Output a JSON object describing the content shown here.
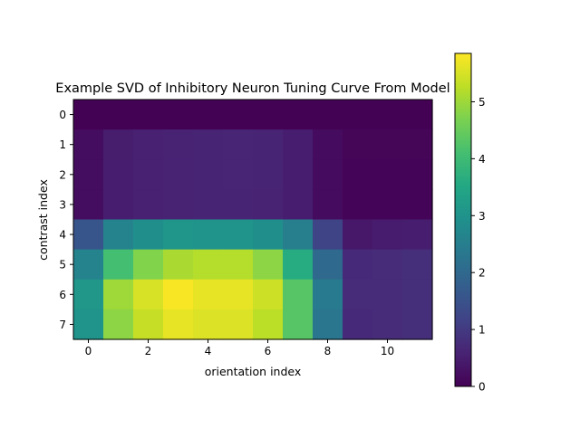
{
  "chart_data": {
    "type": "heatmap",
    "title": "Example SVD of Inhibitory Neuron Tuning Curve From Model",
    "xlabel": "orientation index",
    "ylabel": "contrast index",
    "x_ticks": [
      0,
      2,
      4,
      6,
      8,
      10
    ],
    "y_ticks": [
      0,
      1,
      2,
      3,
      4,
      5,
      6,
      7
    ],
    "colormap": "viridis",
    "colorbar": {
      "vmin": 0,
      "vmax": 5.85,
      "ticks": [
        0,
        1,
        2,
        3,
        4,
        5
      ]
    },
    "grid": false,
    "values": [
      [
        0.02,
        0.02,
        0.02,
        0.02,
        0.02,
        0.02,
        0.02,
        0.02,
        0.01,
        0.01,
        0.01,
        0.01
      ],
      [
        0.2,
        0.48,
        0.55,
        0.58,
        0.6,
        0.62,
        0.6,
        0.5,
        0.18,
        0.08,
        0.08,
        0.08
      ],
      [
        0.2,
        0.5,
        0.55,
        0.58,
        0.6,
        0.62,
        0.6,
        0.5,
        0.18,
        0.05,
        0.05,
        0.05
      ],
      [
        0.2,
        0.5,
        0.55,
        0.58,
        0.6,
        0.6,
        0.58,
        0.5,
        0.18,
        0.05,
        0.05,
        0.05
      ],
      [
        1.55,
        2.6,
        2.9,
        3.05,
        3.0,
        3.0,
        2.9,
        2.5,
        1.2,
        0.4,
        0.45,
        0.5
      ],
      [
        2.6,
        4.1,
        4.75,
        5.1,
        5.2,
        5.2,
        4.85,
        3.6,
        2.0,
        0.7,
        0.75,
        0.8
      ],
      [
        3.1,
        5.0,
        5.5,
        5.8,
        5.65,
        5.65,
        5.4,
        4.3,
        2.4,
        0.75,
        0.75,
        0.8
      ],
      [
        3.0,
        4.85,
        5.35,
        5.65,
        5.55,
        5.55,
        5.25,
        4.3,
        2.3,
        0.7,
        0.75,
        0.8
      ]
    ]
  }
}
